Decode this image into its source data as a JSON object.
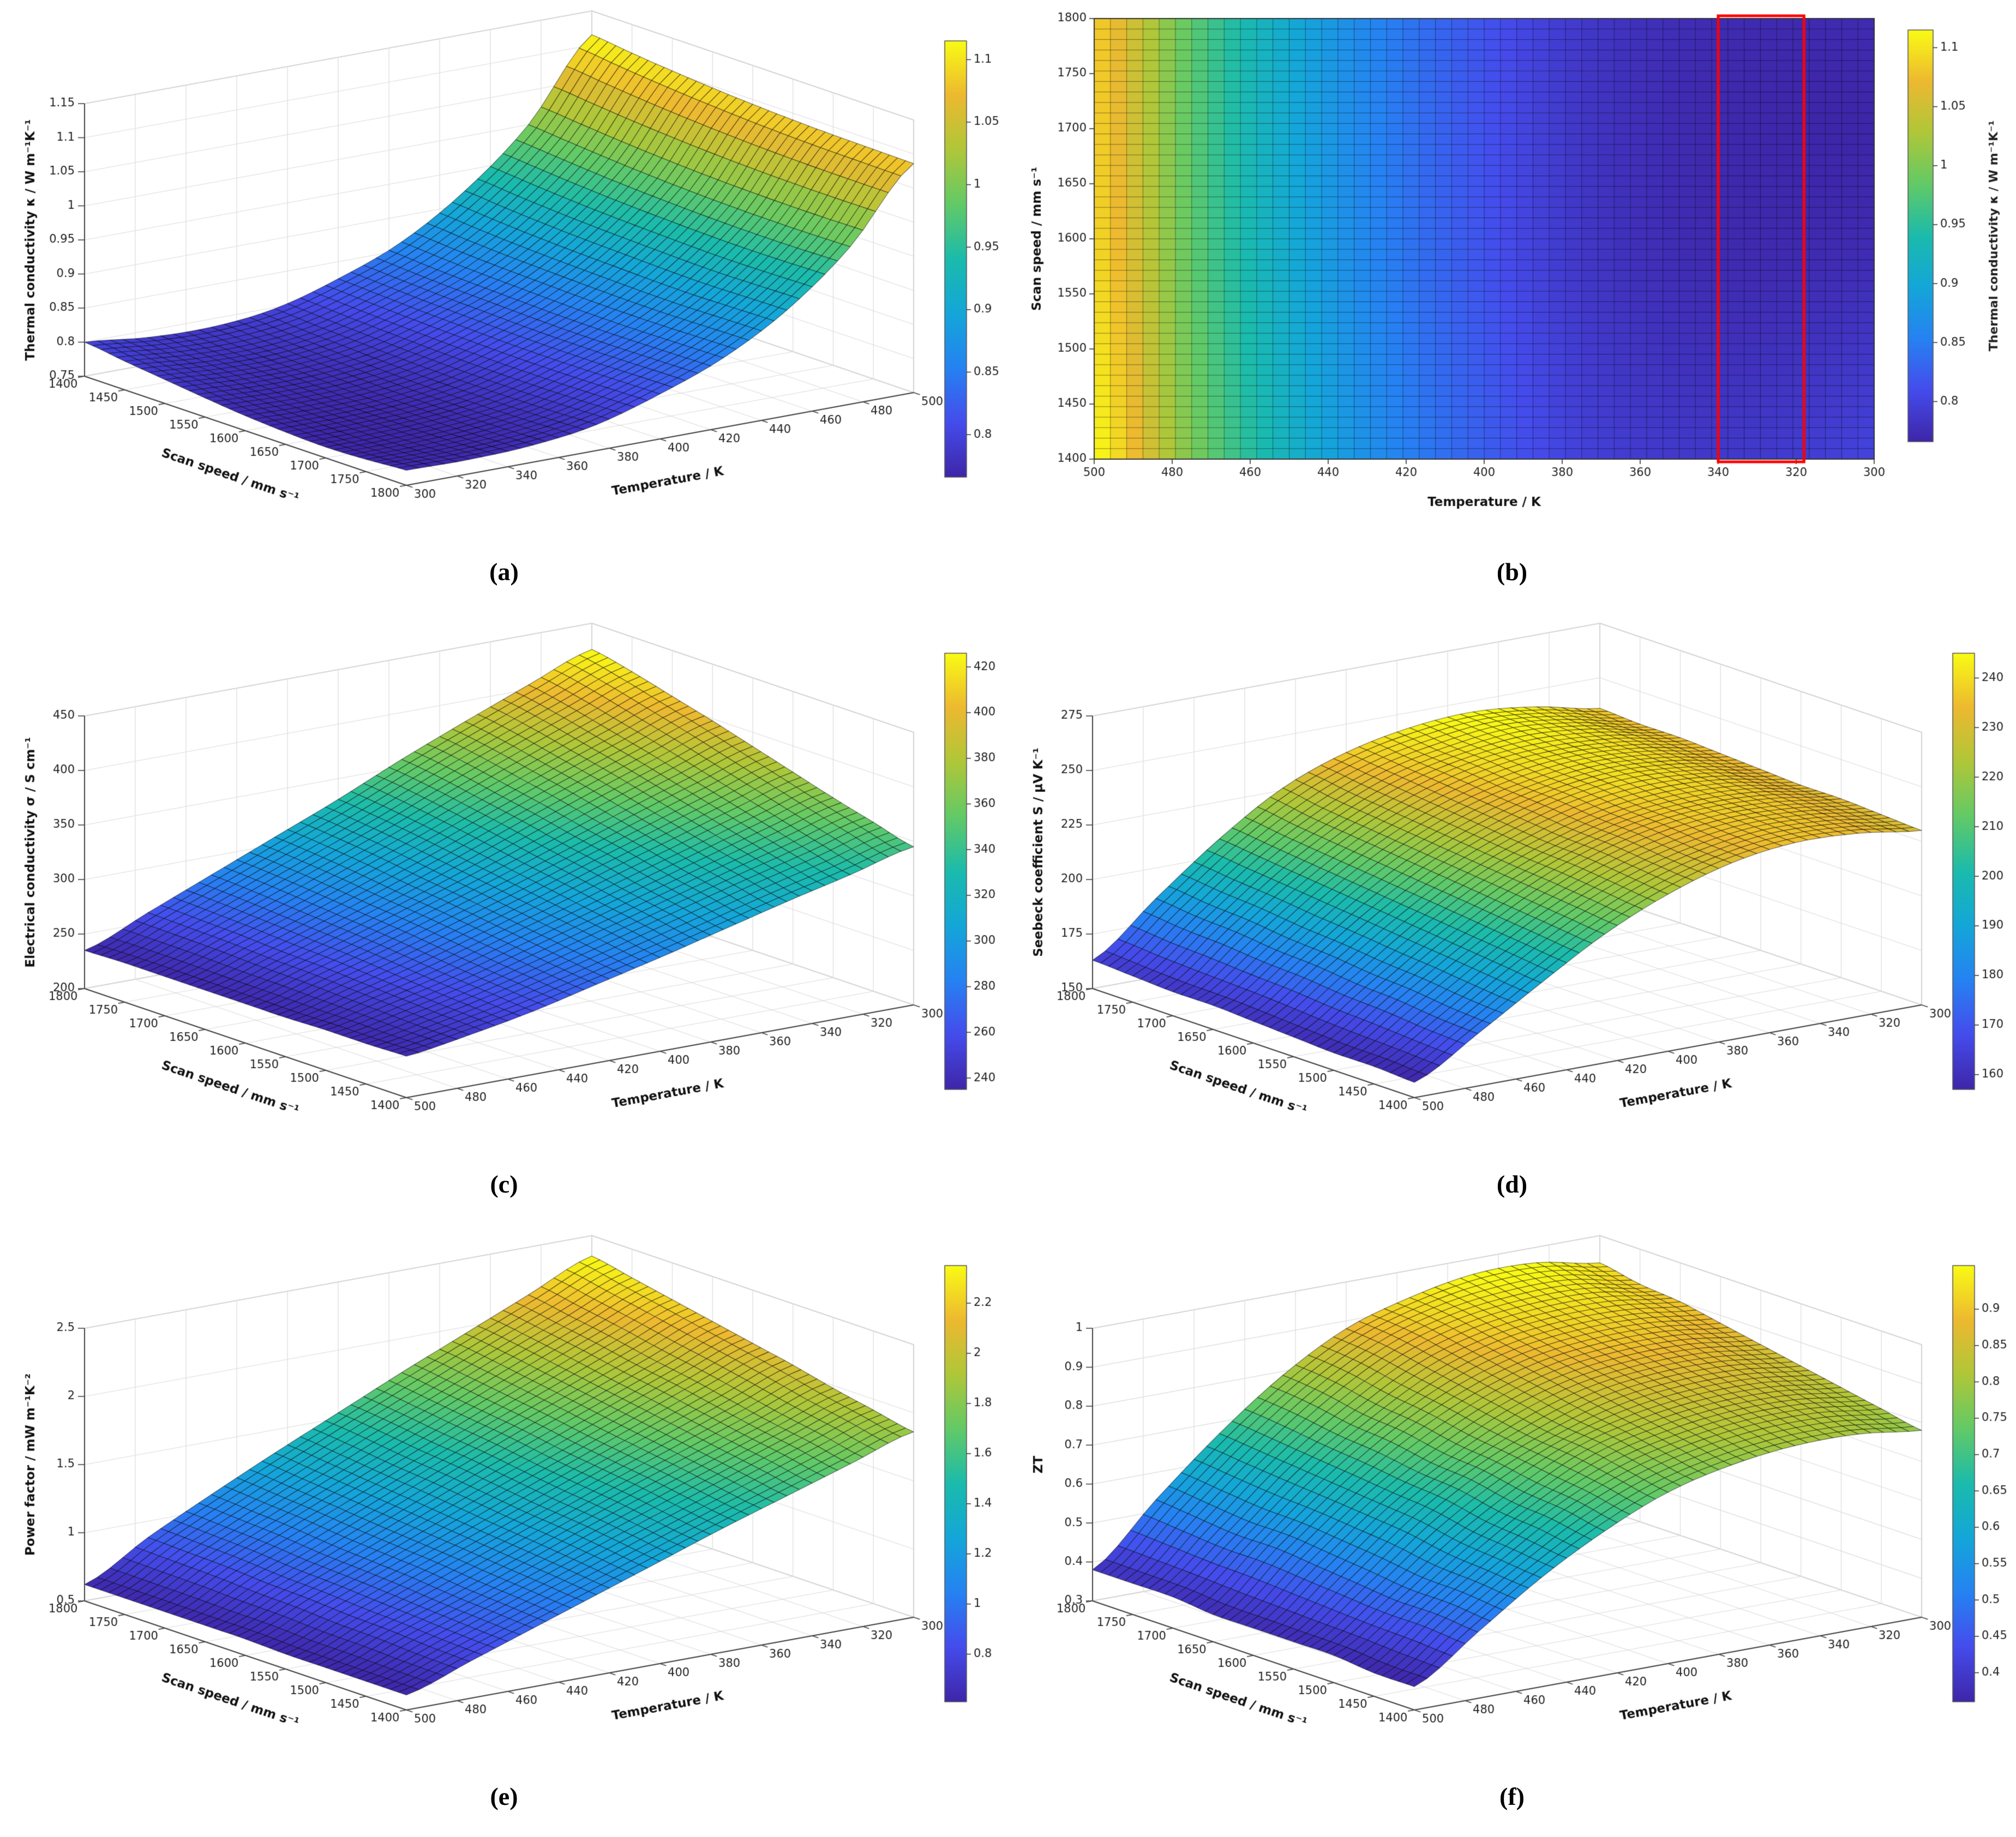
{
  "figure": {
    "background": "#ffffff"
  },
  "colormap": {
    "name": "parula",
    "stops": [
      [
        0,
        62,
        38,
        168
      ],
      [
        0.125,
        69,
        76,
        236
      ],
      [
        0.25,
        38,
        130,
        242
      ],
      [
        0.375,
        20,
        166,
        217
      ],
      [
        0.5,
        27,
        187,
        172
      ],
      [
        0.625,
        98,
        202,
        103
      ],
      [
        0.75,
        175,
        199,
        57
      ],
      [
        0.875,
        237,
        185,
        48
      ],
      [
        1,
        249,
        251,
        21
      ]
    ]
  },
  "colors": {
    "mesh_line": "#000000",
    "wall_grid": "#dcdcdc",
    "axis_line": "#444444",
    "highlight_box": "#ff0000"
  },
  "chart_data": [
    {
      "id": "a",
      "type": "surface",
      "panel_label": "(a)",
      "x_name": "Temperature / K",
      "y_name": "Scan speed / mm s⁻¹",
      "z_name": "Thermal conductivity κ / W m⁻¹K⁻¹",
      "x": [
        300,
        325,
        350,
        375,
        400,
        425,
        450,
        475,
        500
      ],
      "y": [
        1400,
        1450,
        1500,
        1550,
        1600,
        1650,
        1700,
        1750,
        1800
      ],
      "x_ticks": [
        300,
        320,
        340,
        360,
        380,
        400,
        420,
        440,
        460,
        480,
        500
      ],
      "y_ticks": [
        1400,
        1450,
        1500,
        1550,
        1600,
        1650,
        1700,
        1750,
        1800
      ],
      "z_ticks": [
        0.75,
        0.8,
        0.85,
        0.9,
        0.95,
        1,
        1.05,
        1.1,
        1.15
      ],
      "zlim": [
        0.75,
        1.15
      ],
      "colorbar_ticks": [
        0.8,
        0.85,
        0.9,
        0.95,
        1,
        1.05,
        1.1
      ],
      "x_front": "min",
      "y_front": "max",
      "z": [
        [
          0.8,
          0.79,
          0.788,
          0.798,
          0.825,
          0.862,
          0.92,
          1.0,
          1.115
        ],
        [
          0.792,
          0.784,
          0.783,
          0.794,
          0.822,
          0.858,
          0.915,
          0.995,
          1.108
        ],
        [
          0.785,
          0.779,
          0.779,
          0.791,
          0.819,
          0.855,
          0.911,
          0.99,
          1.102
        ],
        [
          0.778,
          0.774,
          0.776,
          0.788,
          0.817,
          0.853,
          0.908,
          0.986,
          1.097
        ],
        [
          0.772,
          0.77,
          0.773,
          0.786,
          0.815,
          0.851,
          0.906,
          0.983,
          1.093
        ],
        [
          0.768,
          0.768,
          0.772,
          0.785,
          0.814,
          0.85,
          0.904,
          0.981,
          1.09
        ],
        [
          0.766,
          0.767,
          0.772,
          0.785,
          0.814,
          0.85,
          0.903,
          0.98,
          1.088
        ],
        [
          0.768,
          0.768,
          0.773,
          0.786,
          0.815,
          0.851,
          0.904,
          0.98,
          1.087
        ],
        [
          0.772,
          0.771,
          0.775,
          0.788,
          0.816,
          0.852,
          0.905,
          0.981,
          1.086
        ]
      ]
    },
    {
      "id": "b",
      "type": "heatmap",
      "panel_label": "(b)",
      "x_name": "Temperature / K",
      "y_name": "Scan speed / mm s⁻¹",
      "c_name": "Thermal conductivity κ / W m⁻¹K⁻¹",
      "x_range": [
        300,
        500
      ],
      "x_dir": "reversed",
      "y_range": [
        1400,
        1800
      ],
      "x_ticks": [
        500,
        480,
        460,
        440,
        420,
        400,
        380,
        360,
        340,
        320,
        300
      ],
      "y_ticks": [
        1400,
        1450,
        1500,
        1550,
        1600,
        1650,
        1700,
        1750,
        1800
      ],
      "colorbar_ticks": [
        0.8,
        0.85,
        0.9,
        0.95,
        1,
        1.05,
        1.1
      ],
      "highlight_box": {
        "x_range": [
          340,
          318
        ],
        "y_range": [
          1400,
          1800
        ],
        "color": "#ff0000"
      },
      "z": [
        [
          0.8,
          0.79,
          0.788,
          0.798,
          0.825,
          0.862,
          0.92,
          1.0,
          1.115
        ],
        [
          0.792,
          0.784,
          0.783,
          0.794,
          0.822,
          0.858,
          0.915,
          0.995,
          1.108
        ],
        [
          0.785,
          0.779,
          0.779,
          0.791,
          0.819,
          0.855,
          0.911,
          0.99,
          1.102
        ],
        [
          0.778,
          0.774,
          0.776,
          0.788,
          0.817,
          0.853,
          0.908,
          0.986,
          1.097
        ],
        [
          0.772,
          0.77,
          0.773,
          0.786,
          0.815,
          0.851,
          0.906,
          0.983,
          1.093
        ],
        [
          0.768,
          0.768,
          0.772,
          0.785,
          0.814,
          0.85,
          0.904,
          0.981,
          1.09
        ],
        [
          0.766,
          0.767,
          0.772,
          0.785,
          0.814,
          0.85,
          0.903,
          0.98,
          1.088
        ],
        [
          0.768,
          0.768,
          0.773,
          0.786,
          0.815,
          0.851,
          0.904,
          0.98,
          1.087
        ],
        [
          0.772,
          0.771,
          0.775,
          0.788,
          0.816,
          0.852,
          0.905,
          0.981,
          1.086
        ]
      ]
    },
    {
      "id": "c",
      "type": "surface",
      "panel_label": "(c)",
      "x_name": "Temperature / K",
      "y_name": "Scan speed / mm s⁻¹",
      "z_name": "Electrical conductivity σ / S cm⁻¹",
      "x": [
        300,
        325,
        350,
        375,
        400,
        425,
        450,
        475,
        500
      ],
      "y": [
        1400,
        1450,
        1500,
        1550,
        1600,
        1650,
        1700,
        1750,
        1800
      ],
      "x_ticks": [
        300,
        320,
        340,
        360,
        380,
        400,
        420,
        440,
        460,
        480,
        500
      ],
      "y_ticks": [
        1400,
        1450,
        1500,
        1550,
        1600,
        1650,
        1700,
        1750,
        1800
      ],
      "z_ticks": [
        200,
        250,
        300,
        350,
        400,
        450
      ],
      "zlim": [
        200,
        450
      ],
      "colorbar_ticks": [
        240,
        260,
        280,
        300,
        320,
        340,
        360,
        380,
        400,
        420
      ],
      "x_front": "max",
      "y_front": "min",
      "z": [
        [
          345,
          330,
          316,
          301,
          286,
          272,
          258,
          247,
          238
        ],
        [
          355,
          339,
          324,
          308,
          292,
          276,
          261,
          248,
          237
        ],
        [
          365,
          349,
          332,
          315,
          298,
          281,
          264,
          250,
          237
        ],
        [
          376,
          359,
          341,
          323,
          304,
          286,
          268,
          252,
          236
        ],
        [
          387,
          369,
          350,
          330,
          310,
          291,
          272,
          254,
          236
        ],
        [
          398,
          379,
          359,
          338,
          316,
          295,
          275,
          255,
          236
        ],
        [
          408,
          388,
          367,
          345,
          322,
          300,
          278,
          257,
          236
        ],
        [
          418,
          397,
          375,
          352,
          327,
          304,
          281,
          258,
          236
        ],
        [
          426,
          404,
          381,
          357,
          331,
          307,
          283,
          259,
          235
        ]
      ]
    },
    {
      "id": "d",
      "type": "surface",
      "panel_label": "(d)",
      "x_name": "Temperature / K",
      "y_name": "Scan speed / mm s⁻¹",
      "z_name": "Seebeck coefficient S / μV K⁻¹",
      "x": [
        300,
        325,
        350,
        375,
        400,
        425,
        450,
        475,
        500
      ],
      "y": [
        1400,
        1450,
        1500,
        1550,
        1600,
        1650,
        1700,
        1750,
        1800
      ],
      "x_ticks": [
        300,
        320,
        340,
        360,
        380,
        400,
        420,
        440,
        460,
        480,
        500
      ],
      "y_ticks": [
        1400,
        1450,
        1500,
        1550,
        1600,
        1650,
        1700,
        1750,
        1800
      ],
      "z_ticks": [
        150,
        175,
        200,
        225,
        250,
        275
      ],
      "zlim": [
        150,
        275
      ],
      "colorbar_ticks": [
        160,
        170,
        180,
        190,
        200,
        210,
        220,
        230,
        240
      ],
      "x_front": "max",
      "y_front": "min",
      "z": [
        [
          230,
          234,
          235,
          231,
          222,
          209,
          192,
          174,
          157
        ],
        [
          231,
          235,
          236,
          232,
          224,
          211,
          194,
          175,
          158
        ],
        [
          232,
          236,
          237,
          234,
          226,
          213,
          196,
          177,
          158
        ],
        [
          232,
          237,
          238,
          235,
          227,
          215,
          198,
          178,
          159
        ],
        [
          233,
          238,
          240,
          237,
          229,
          217,
          200,
          180,
          160
        ],
        [
          234,
          239,
          241,
          238,
          231,
          219,
          202,
          181,
          161
        ],
        [
          235,
          240,
          242,
          240,
          233,
          221,
          204,
          183,
          161
        ],
        [
          235,
          241,
          244,
          241,
          235,
          223,
          206,
          184,
          162
        ],
        [
          236,
          242,
          245,
          243,
          237,
          226,
          208,
          186,
          163
        ]
      ]
    },
    {
      "id": "e",
      "type": "surface",
      "panel_label": "(e)",
      "x_name": "Temperature / K",
      "y_name": "Scan speed / mm s⁻¹",
      "z_name": "Power factor / mW m⁻¹K⁻²",
      "x": [
        300,
        325,
        350,
        375,
        400,
        425,
        450,
        475,
        500
      ],
      "y": [
        1400,
        1450,
        1500,
        1550,
        1600,
        1650,
        1700,
        1750,
        1800
      ],
      "x_ticks": [
        300,
        320,
        340,
        360,
        380,
        400,
        420,
        440,
        460,
        480,
        500
      ],
      "y_ticks": [
        1400,
        1450,
        1500,
        1550,
        1600,
        1650,
        1700,
        1750,
        1800
      ],
      "z_ticks": [
        0.5,
        1,
        1.5,
        2,
        2.5
      ],
      "zlim": [
        0.5,
        2.5
      ],
      "colorbar_ticks": [
        0.8,
        1,
        1.2,
        1.4,
        1.6,
        1.8,
        2,
        2.2
      ],
      "x_front": "max",
      "y_front": "min",
      "z": [
        [
          1.86,
          1.71,
          1.56,
          1.41,
          1.25,
          1.09,
          0.93,
          0.77,
          0.61
        ],
        [
          1.92,
          1.77,
          1.61,
          1.45,
          1.29,
          1.12,
          0.95,
          0.78,
          0.61
        ],
        [
          1.98,
          1.82,
          1.66,
          1.5,
          1.33,
          1.15,
          0.97,
          0.8,
          0.61
        ],
        [
          2.05,
          1.88,
          1.71,
          1.54,
          1.36,
          1.18,
          1.0,
          0.81,
          0.61
        ],
        [
          2.11,
          1.94,
          1.76,
          1.58,
          1.4,
          1.21,
          1.02,
          0.83,
          0.62
        ],
        [
          2.17,
          1.99,
          1.81,
          1.63,
          1.44,
          1.24,
          1.04,
          0.84,
          0.62
        ],
        [
          2.23,
          2.05,
          1.86,
          1.67,
          1.47,
          1.27,
          1.07,
          0.86,
          0.62
        ],
        [
          2.29,
          2.1,
          1.91,
          1.71,
          1.51,
          1.3,
          1.09,
          0.87,
          0.62
        ],
        [
          2.35,
          2.15,
          1.95,
          1.75,
          1.54,
          1.33,
          1.11,
          0.88,
          0.62
        ]
      ]
    },
    {
      "id": "f",
      "type": "surface",
      "panel_label": "(f)",
      "x_name": "Temperature / K",
      "y_name": "Scan speed / mm s⁻¹",
      "z_name": "ZT",
      "x": [
        300,
        325,
        350,
        375,
        400,
        425,
        450,
        475,
        500
      ],
      "y": [
        1400,
        1450,
        1500,
        1550,
        1600,
        1650,
        1700,
        1750,
        1800
      ],
      "x_ticks": [
        300,
        320,
        340,
        360,
        380,
        400,
        420,
        440,
        460,
        480,
        500
      ],
      "y_ticks": [
        1400,
        1450,
        1500,
        1550,
        1600,
        1650,
        1700,
        1750,
        1800
      ],
      "z_ticks": [
        0.3,
        0.4,
        0.5,
        0.6,
        0.7,
        0.8,
        0.9,
        1
      ],
      "zlim": [
        0.3,
        1
      ],
      "colorbar_ticks": [
        0.4,
        0.45,
        0.5,
        0.55,
        0.6,
        0.65,
        0.7,
        0.75,
        0.8,
        0.85,
        0.9
      ],
      "x_front": "max",
      "y_front": "min",
      "z": [
        [
          0.78,
          0.8,
          0.8,
          0.78,
          0.74,
          0.67,
          0.58,
          0.47,
          0.36
        ],
        [
          0.8,
          0.82,
          0.82,
          0.8,
          0.76,
          0.69,
          0.59,
          0.48,
          0.36
        ],
        [
          0.82,
          0.84,
          0.84,
          0.82,
          0.78,
          0.7,
          0.6,
          0.48,
          0.37
        ],
        [
          0.84,
          0.86,
          0.86,
          0.84,
          0.79,
          0.72,
          0.62,
          0.49,
          0.37
        ],
        [
          0.86,
          0.88,
          0.88,
          0.86,
          0.81,
          0.73,
          0.63,
          0.5,
          0.37
        ],
        [
          0.88,
          0.9,
          0.9,
          0.88,
          0.83,
          0.75,
          0.64,
          0.51,
          0.37
        ],
        [
          0.9,
          0.92,
          0.92,
          0.9,
          0.85,
          0.76,
          0.65,
          0.51,
          0.38
        ],
        [
          0.91,
          0.94,
          0.94,
          0.92,
          0.87,
          0.78,
          0.66,
          0.52,
          0.38
        ],
        [
          0.93,
          0.96,
          0.96,
          0.93,
          0.88,
          0.79,
          0.67,
          0.53,
          0.38
        ]
      ]
    }
  ]
}
